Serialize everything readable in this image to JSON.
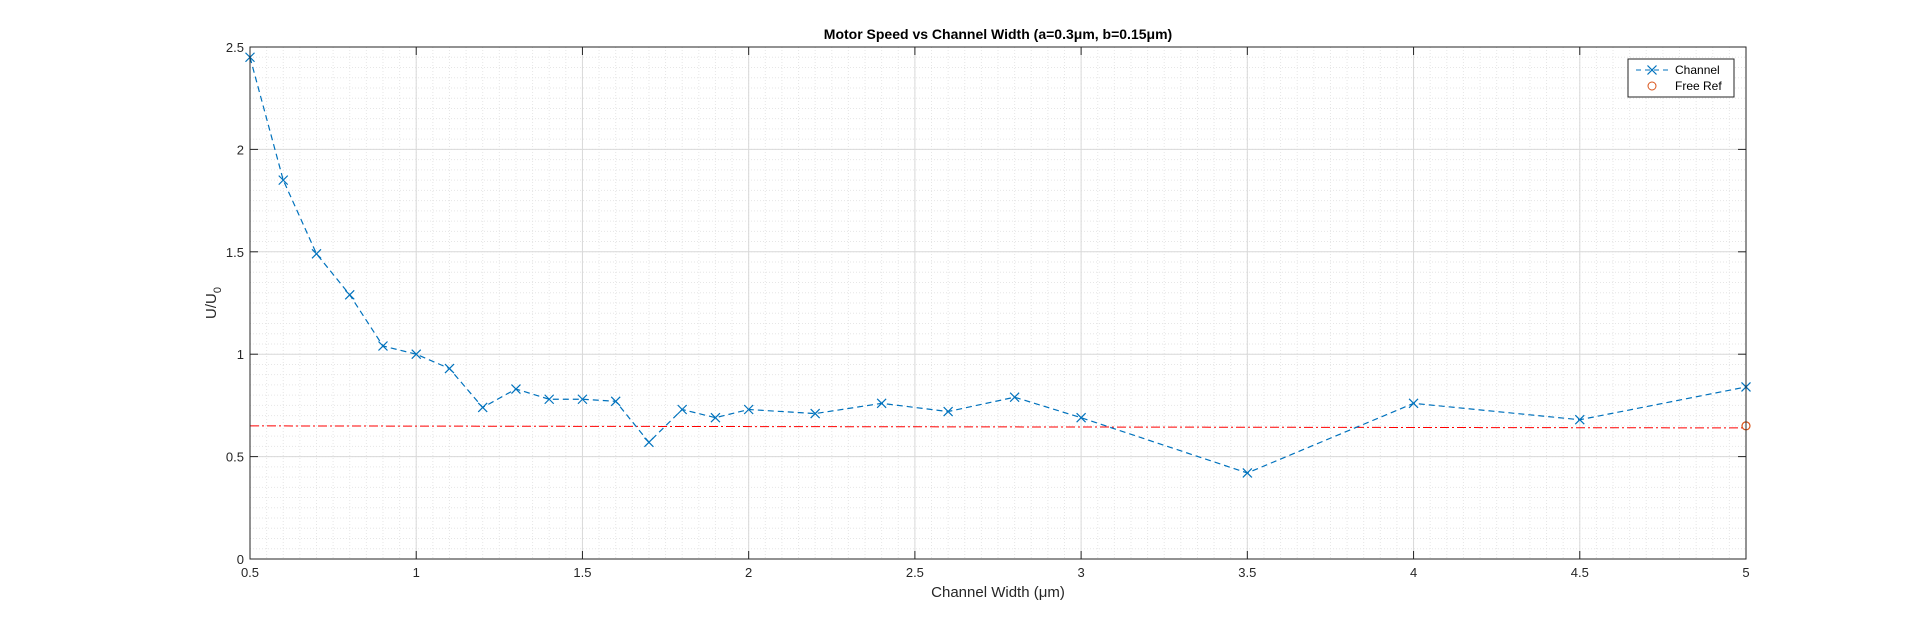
{
  "chart_data": {
    "type": "line",
    "title": "Motor Speed vs Channel Width (a=0.3μm, b=0.15μm)",
    "xlabel": "Channel Width (μm)",
    "ylabel": "U/U",
    "ylabel_subscript": "0",
    "xlim": [
      0.5,
      5
    ],
    "ylim": [
      0,
      2.5
    ],
    "xticks": [
      0.5,
      1,
      1.5,
      2,
      2.5,
      3,
      3.5,
      4,
      4.5,
      5
    ],
    "xtick_labels": [
      "0.5",
      "1",
      "1.5",
      "2",
      "2.5",
      "3",
      "3.5",
      "4",
      "4.5",
      "5"
    ],
    "yticks": [
      0,
      0.5,
      1,
      1.5,
      2,
      2.5
    ],
    "ytick_labels": [
      "0",
      "0.5",
      "1",
      "1.5",
      "2",
      "2.5"
    ],
    "grid": true,
    "minor_grid": true,
    "legend_position": "top-right",
    "series": [
      {
        "name": "Channel",
        "color": "#0072BD",
        "line_style": "dashed",
        "marker": "x",
        "x": [
          0.5,
          0.6,
          0.7,
          0.8,
          0.9,
          1.0,
          1.1,
          1.2,
          1.3,
          1.4,
          1.5,
          1.6,
          1.7,
          1.8,
          1.9,
          2.0,
          2.2,
          2.4,
          2.6,
          2.8,
          3.0,
          3.5,
          4.0,
          4.5,
          5.0
        ],
        "y": [
          2.45,
          1.85,
          1.49,
          1.29,
          1.04,
          1.0,
          0.93,
          0.74,
          0.83,
          0.78,
          0.78,
          0.77,
          0.57,
          0.73,
          0.69,
          0.73,
          0.71,
          0.76,
          0.72,
          0.79,
          0.69,
          0.42,
          0.76,
          0.68,
          0.84
        ]
      },
      {
        "name": "Free Ref",
        "color": "#D95319",
        "line_style": "none",
        "marker": "o",
        "x": [
          5.0
        ],
        "y": [
          0.65
        ]
      }
    ],
    "reference_line": {
      "color": "#FF0000",
      "line_style": "dash-dot",
      "x": [
        0.5,
        5.0
      ],
      "y": [
        0.65,
        0.64
      ]
    }
  }
}
